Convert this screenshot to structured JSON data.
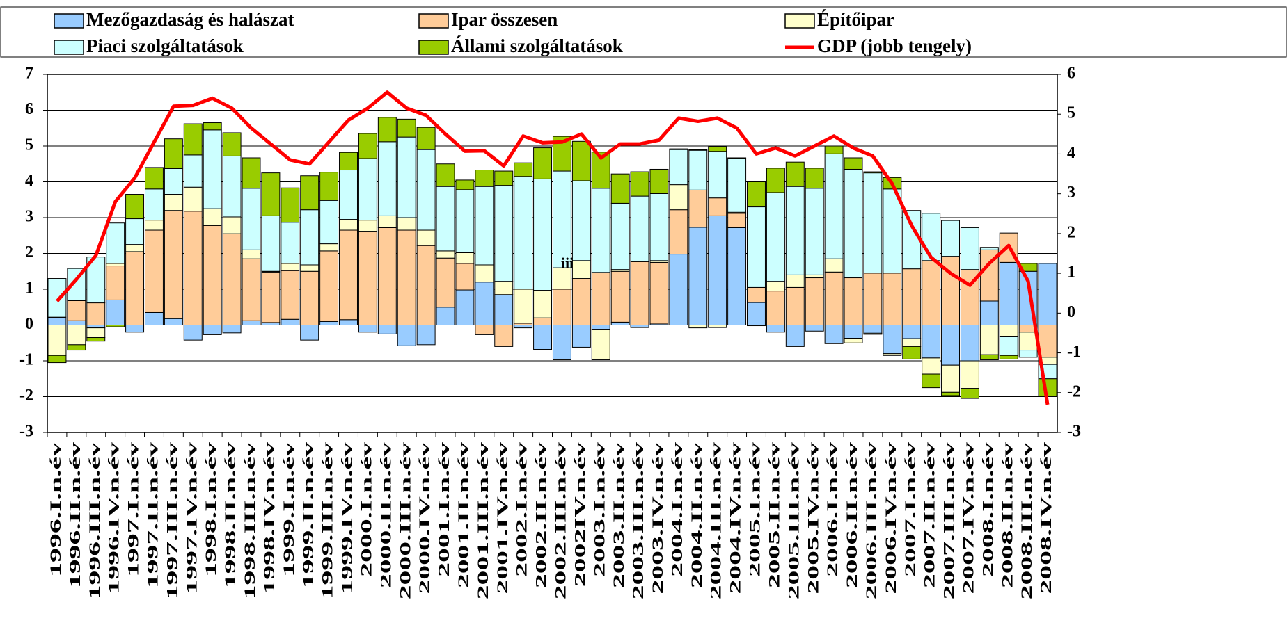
{
  "chart_data": {
    "type": "bar",
    "stacked": true,
    "categories": [
      "1996.I.n.év",
      "1996.II.n.év",
      "1996.III.n.év",
      "1996.IV.n.év",
      "1997.I.n.év",
      "1997.II.n.év",
      "1997.III.n.év",
      "1997.IV.n.év",
      "1998.I.n.év",
      "1998.II.n.év",
      "1998.III.n.év",
      "1998.IV.n.év",
      "1999.I.n.év",
      "1999.II.n.év",
      "1999.III.n.év",
      "1999.IV.n.év",
      "2000.I.n.év",
      "2000.II.n.év",
      "2000.III.n.év",
      "2000.IV.n.év",
      "2001.I.n.év",
      "2001.II.n.év",
      "2001.III.n.év",
      "2001.IV.n.év",
      "2002.I.n.év",
      "2002.II.n.év",
      "2002.III.n.év",
      "2002IV.n.év",
      "2003.I.n.év",
      "2003.II.n.év",
      "2003.III.n.év",
      "2003.IV.n.év",
      "2004.I.n.év",
      "2004.II.n.év",
      "2004.III.n.év",
      "2004.IV.n.év",
      "2005.I.n.év",
      "2005.II.n.év",
      "2005.III.n.év",
      "2005.IV.n.év",
      "2006.I.n.év",
      "2006.II.n.év",
      "2006.III.n.év",
      "2006.IV.n.év",
      "2007.I.n.év",
      "2007.II.n.év",
      "2007.III.n.év",
      "2007.IV.n.év",
      "2008.I.n.év",
      "2008.II.n.év",
      "2008.III.n.év",
      "2008.IV.n.év"
    ],
    "series": [
      {
        "name": "Mezőgazdaság és halászat",
        "color": "#99ccff",
        "values": [
          0.2,
          0.12,
          -0.08,
          0.7,
          -0.2,
          0.35,
          0.18,
          -0.42,
          -0.27,
          -0.22,
          0.12,
          0.07,
          0.16,
          -0.42,
          0.1,
          0.15,
          -0.2,
          -0.25,
          -0.58,
          -0.55,
          0.5,
          0.98,
          1.2,
          0.85,
          -0.08,
          -0.68,
          -0.97,
          -0.62,
          -0.12,
          0.08,
          -0.07,
          0.03,
          1.98,
          2.73,
          3.05,
          2.72,
          0.63,
          -0.2,
          -0.6,
          -0.17,
          -0.52,
          -0.37,
          -0.23,
          -0.8,
          -0.38,
          -0.92,
          -1.12,
          -1.0,
          0.67,
          1.75,
          1.5,
          1.72
        ]
      },
      {
        "name": "Ipar összesen",
        "color": "#ffcc99",
        "values": [
          0.02,
          0.56,
          0.62,
          0.95,
          2.05,
          2.3,
          3.02,
          3.18,
          2.78,
          2.55,
          1.73,
          1.41,
          1.36,
          1.5,
          1.97,
          2.5,
          2.62,
          2.72,
          2.65,
          2.22,
          1.37,
          0.74,
          -0.27,
          -0.6,
          0.05,
          0.2,
          1.0,
          1.3,
          1.47,
          1.42,
          1.77,
          1.72,
          1.24,
          1.04,
          0.5,
          0.4,
          0.42,
          0.95,
          1.05,
          1.32,
          1.48,
          1.32,
          1.45,
          1.45,
          1.57,
          1.8,
          1.92,
          1.55,
          1.43,
          0.82,
          -0.2,
          -0.9
        ]
      },
      {
        "name": "Építőipar",
        "color": "#ffffcc",
        "values": [
          -0.85,
          -0.55,
          -0.27,
          0.07,
          0.2,
          0.28,
          0.45,
          0.67,
          0.47,
          0.47,
          0.25,
          0.02,
          0.2,
          0.18,
          0.2,
          0.3,
          0.31,
          0.33,
          0.35,
          0.43,
          0.2,
          0.3,
          0.48,
          0.37,
          0.95,
          0.77,
          0.6,
          0.5,
          -0.85,
          0.05,
          0.01,
          0.05,
          0.7,
          -0.08,
          -0.07,
          0.03,
          -0.02,
          0.27,
          0.35,
          0.08,
          0.37,
          -0.13,
          -0.03,
          -0.05,
          -0.22,
          -0.45,
          -0.76,
          -0.77,
          -0.83,
          -0.33,
          -0.5,
          -0.2
        ]
      },
      {
        "name": "Piaci szolgáltatások",
        "color": "#ccffff",
        "values": [
          1.08,
          0.9,
          1.28,
          1.13,
          0.72,
          0.87,
          0.72,
          0.9,
          2.2,
          1.7,
          1.72,
          1.55,
          1.15,
          1.54,
          1.21,
          1.38,
          1.72,
          2.07,
          2.25,
          2.25,
          1.8,
          1.76,
          2.19,
          2.68,
          3.15,
          3.11,
          2.7,
          2.23,
          2.35,
          1.85,
          1.82,
          1.87,
          0.98,
          1.11,
          1.3,
          1.5,
          2.25,
          2.48,
          2.47,
          2.42,
          2.93,
          3.03,
          2.8,
          2.35,
          1.63,
          1.32,
          1.0,
          1.17,
          0.07,
          -0.52,
          -0.2,
          -0.4
        ]
      },
      {
        "name": "Állami szolgáltatások",
        "color": "#99cc00",
        "values": [
          -0.2,
          -0.15,
          -0.1,
          -0.05,
          0.68,
          0.6,
          0.83,
          0.87,
          0.2,
          0.65,
          0.85,
          1.2,
          0.96,
          0.95,
          0.79,
          0.49,
          0.7,
          0.68,
          0.5,
          0.62,
          0.63,
          0.27,
          0.46,
          0.4,
          0.38,
          0.87,
          0.97,
          1.1,
          1.01,
          0.82,
          0.68,
          0.68,
          0.02,
          0.02,
          0.13,
          0.02,
          0.7,
          0.68,
          0.68,
          0.56,
          0.22,
          0.32,
          0.03,
          0.32,
          -0.35,
          -0.38,
          -0.09,
          -0.28,
          -0.14,
          -0.1,
          0.22,
          -0.5
        ]
      },
      {
        "name": "GDP (jobb tengely)",
        "color": "#ff0000",
        "type": "line",
        "axis": "y2",
        "values": [
          0.3,
          0.85,
          1.45,
          2.8,
          3.4,
          4.3,
          5.2,
          5.22,
          5.4,
          5.15,
          4.65,
          4.25,
          3.85,
          3.75,
          4.3,
          4.85,
          5.15,
          5.55,
          5.15,
          4.97,
          4.5,
          4.07,
          4.08,
          3.7,
          4.45,
          4.28,
          4.3,
          4.5,
          3.9,
          4.25,
          4.25,
          4.35,
          4.9,
          4.82,
          4.9,
          4.65,
          4.0,
          4.15,
          3.95,
          4.2,
          4.45,
          4.15,
          3.95,
          3.25,
          2.2,
          1.4,
          1.0,
          0.7,
          1.25,
          1.7,
          0.8,
          -2.3
        ]
      }
    ],
    "ylim": [
      -3,
      7
    ],
    "yticks": [
      -3,
      -2,
      -1,
      0,
      1,
      2,
      3,
      4,
      5,
      6,
      7
    ],
    "y2lim": [
      -3,
      6
    ],
    "y2ticks": [
      -3,
      -2,
      -1,
      0,
      1,
      2,
      3,
      4,
      5,
      6
    ],
    "grid": true,
    "legend": "top",
    "annotations": [
      "iii"
    ]
  }
}
